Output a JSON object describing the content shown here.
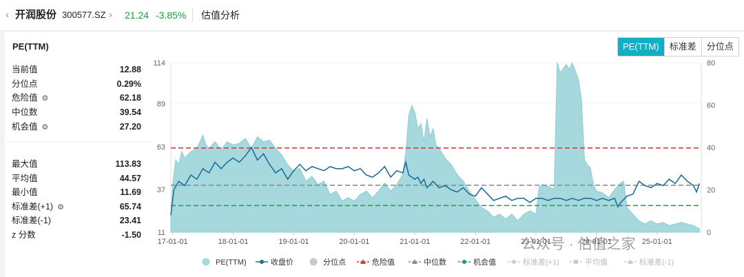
{
  "header": {
    "back_icon": "chevron-left-icon",
    "name": "开润股份",
    "code": "300577.SZ",
    "price": "21.24",
    "change": "-3.85%",
    "page_title": "估值分析",
    "price_color": "#1a9c3e"
  },
  "panel": {
    "title": "PE(TTM)",
    "tabs": [
      {
        "label": "PE(TTM)",
        "active": true
      },
      {
        "label": "标准差",
        "active": false
      },
      {
        "label": "分位点",
        "active": false
      }
    ]
  },
  "stats_top": [
    {
      "label": "当前值",
      "value": "12.88",
      "gear": false
    },
    {
      "label": "分位点",
      "value": "0.29%",
      "gear": false
    },
    {
      "label": "危险值",
      "value": "62.18",
      "gear": true
    },
    {
      "label": "中位数",
      "value": "39.54",
      "gear": false
    },
    {
      "label": "机会值",
      "value": "27.20",
      "gear": true
    }
  ],
  "stats_bottom": [
    {
      "label": "最大值",
      "value": "113.83",
      "gear": false
    },
    {
      "label": "平均值",
      "value": "44.57",
      "gear": false
    },
    {
      "label": "最小值",
      "value": "11.69",
      "gear": false
    },
    {
      "label": "标准差(+1)",
      "value": "65.74",
      "gear": true
    },
    {
      "label": "标准差(-1)",
      "value": "23.41",
      "gear": false
    },
    {
      "label": "z 分数",
      "value": "-1.50",
      "gear": false
    }
  ],
  "watermark": "公众号 · 估值之家",
  "chart_data": {
    "type": "area",
    "x_ticks": [
      "17-01-01",
      "18-01-01",
      "19-01-01",
      "20-01-01",
      "21-01-01",
      "22-01-01",
      "23-01-01",
      "24-01-01",
      "25-01-01"
    ],
    "x_tick_positions": [
      0,
      1,
      2,
      3,
      4,
      5,
      6,
      7,
      8
    ],
    "x_range": [
      -0.03,
      8.73
    ],
    "y_left_ticks": [
      11,
      37,
      63,
      89,
      114
    ],
    "y_left_range": [
      11,
      114
    ],
    "y_right_ticks": [
      0,
      20,
      40,
      60,
      80
    ],
    "y_right_range": [
      0,
      80
    ],
    "grid": true,
    "legend_position": "bottom",
    "colors": {
      "pe": "#a6d9dd",
      "price": "#1f6f9a",
      "danger": "#d83b3b",
      "median": "#8c8c8c",
      "opportunity": "#24a05a"
    },
    "series": [
      {
        "name": "PE(TTM)",
        "axis": "left",
        "points": [
          [
            -0.03,
            18
          ],
          [
            0.0,
            40
          ],
          [
            0.05,
            55
          ],
          [
            0.1,
            52
          ],
          [
            0.15,
            60
          ],
          [
            0.2,
            56
          ],
          [
            0.3,
            60
          ],
          [
            0.4,
            62
          ],
          [
            0.5,
            70
          ],
          [
            0.55,
            64
          ],
          [
            0.6,
            62
          ],
          [
            0.7,
            66
          ],
          [
            0.8,
            61
          ],
          [
            0.9,
            66
          ],
          [
            1.0,
            64
          ],
          [
            1.1,
            65
          ],
          [
            1.2,
            68
          ],
          [
            1.3,
            62
          ],
          [
            1.4,
            69
          ],
          [
            1.5,
            66
          ],
          [
            1.6,
            67
          ],
          [
            1.7,
            62
          ],
          [
            1.8,
            58
          ],
          [
            1.9,
            52
          ],
          [
            2.0,
            48
          ],
          [
            2.1,
            50
          ],
          [
            2.2,
            42
          ],
          [
            2.3,
            45
          ],
          [
            2.4,
            40
          ],
          [
            2.5,
            42
          ],
          [
            2.6,
            34
          ],
          [
            2.7,
            36
          ],
          [
            2.8,
            30
          ],
          [
            2.9,
            32
          ],
          [
            3.0,
            30
          ],
          [
            3.1,
            34
          ],
          [
            3.2,
            36
          ],
          [
            3.3,
            32
          ],
          [
            3.4,
            36
          ],
          [
            3.5,
            41
          ],
          [
            3.6,
            36
          ],
          [
            3.7,
            40
          ],
          [
            3.8,
            46
          ],
          [
            3.85,
            60
          ],
          [
            3.9,
            82
          ],
          [
            3.95,
            88
          ],
          [
            4.0,
            84
          ],
          [
            4.05,
            74
          ],
          [
            4.1,
            77
          ],
          [
            4.15,
            66
          ],
          [
            4.2,
            80
          ],
          [
            4.25,
            69
          ],
          [
            4.3,
            74
          ],
          [
            4.35,
            64
          ],
          [
            4.4,
            62
          ],
          [
            4.5,
            56
          ],
          [
            4.6,
            52
          ],
          [
            4.7,
            46
          ],
          [
            4.8,
            42
          ],
          [
            4.9,
            36
          ],
          [
            5.0,
            31
          ],
          [
            5.1,
            26
          ],
          [
            5.2,
            24
          ],
          [
            5.3,
            20
          ],
          [
            5.4,
            22
          ],
          [
            5.5,
            19
          ],
          [
            5.6,
            22
          ],
          [
            5.7,
            18
          ],
          [
            5.8,
            22
          ],
          [
            5.9,
            24
          ],
          [
            6.0,
            22
          ],
          [
            6.05,
            38
          ],
          [
            6.1,
            40
          ],
          [
            6.2,
            39
          ],
          [
            6.3,
            37
          ],
          [
            6.35,
            114
          ],
          [
            6.4,
            108
          ],
          [
            6.5,
            113
          ],
          [
            6.55,
            110
          ],
          [
            6.6,
            114
          ],
          [
            6.7,
            104
          ],
          [
            6.75,
            92
          ],
          [
            6.8,
            55
          ],
          [
            6.85,
            52
          ],
          [
            6.9,
            50
          ],
          [
            6.95,
            40
          ],
          [
            7.0,
            36
          ],
          [
            7.1,
            35
          ],
          [
            7.2,
            32
          ],
          [
            7.3,
            37
          ],
          [
            7.4,
            41
          ],
          [
            7.45,
            42
          ],
          [
            7.5,
            26
          ],
          [
            7.55,
            24
          ],
          [
            7.6,
            22
          ],
          [
            7.7,
            18
          ],
          [
            7.8,
            16
          ],
          [
            7.9,
            18
          ],
          [
            8.0,
            16
          ],
          [
            8.1,
            17
          ],
          [
            8.2,
            15
          ],
          [
            8.3,
            16
          ],
          [
            8.4,
            17
          ],
          [
            8.5,
            16
          ],
          [
            8.6,
            15
          ],
          [
            8.7,
            13
          ]
        ]
      },
      {
        "name": "收盘价",
        "axis": "right",
        "points": [
          [
            -0.03,
            8
          ],
          [
            0.02,
            20
          ],
          [
            0.1,
            24
          ],
          [
            0.2,
            22
          ],
          [
            0.3,
            27
          ],
          [
            0.4,
            25
          ],
          [
            0.5,
            30
          ],
          [
            0.6,
            28
          ],
          [
            0.7,
            33
          ],
          [
            0.8,
            30
          ],
          [
            0.9,
            33
          ],
          [
            1.0,
            35
          ],
          [
            1.1,
            33
          ],
          [
            1.2,
            36
          ],
          [
            1.3,
            40
          ],
          [
            1.4,
            34
          ],
          [
            1.5,
            37
          ],
          [
            1.6,
            32
          ],
          [
            1.7,
            28
          ],
          [
            1.8,
            30
          ],
          [
            1.9,
            25
          ],
          [
            2.0,
            29
          ],
          [
            2.1,
            32
          ],
          [
            2.2,
            29
          ],
          [
            2.3,
            31
          ],
          [
            2.4,
            30
          ],
          [
            2.5,
            29
          ],
          [
            2.6,
            31
          ],
          [
            2.7,
            30
          ],
          [
            2.8,
            30
          ],
          [
            2.9,
            31
          ],
          [
            3.0,
            29
          ],
          [
            3.1,
            30
          ],
          [
            3.2,
            27
          ],
          [
            3.3,
            26
          ],
          [
            3.4,
            28
          ],
          [
            3.5,
            31
          ],
          [
            3.6,
            26
          ],
          [
            3.7,
            29
          ],
          [
            3.8,
            28
          ],
          [
            3.85,
            33
          ],
          [
            3.9,
            27
          ],
          [
            4.0,
            25
          ],
          [
            4.05,
            26
          ],
          [
            4.1,
            23
          ],
          [
            4.15,
            25
          ],
          [
            4.2,
            21
          ],
          [
            4.3,
            24
          ],
          [
            4.4,
            21
          ],
          [
            4.5,
            22
          ],
          [
            4.6,
            20
          ],
          [
            4.7,
            19
          ],
          [
            4.8,
            21
          ],
          [
            4.9,
            18
          ],
          [
            5.0,
            17
          ],
          [
            5.1,
            21
          ],
          [
            5.2,
            18
          ],
          [
            5.3,
            15
          ],
          [
            5.4,
            16
          ],
          [
            5.5,
            17
          ],
          [
            5.6,
            15
          ],
          [
            5.7,
            16
          ],
          [
            5.8,
            16
          ],
          [
            5.9,
            14
          ],
          [
            6.0,
            16
          ],
          [
            6.1,
            16
          ],
          [
            6.2,
            15
          ],
          [
            6.3,
            16
          ],
          [
            6.4,
            16
          ],
          [
            6.5,
            15
          ],
          [
            6.6,
            16
          ],
          [
            6.7,
            15
          ],
          [
            6.8,
            16
          ],
          [
            6.9,
            16
          ],
          [
            7.0,
            15
          ],
          [
            7.1,
            16
          ],
          [
            7.2,
            15
          ],
          [
            7.3,
            16
          ],
          [
            7.35,
            12
          ],
          [
            7.4,
            14
          ],
          [
            7.5,
            17
          ],
          [
            7.6,
            18
          ],
          [
            7.7,
            24
          ],
          [
            7.8,
            22
          ],
          [
            7.9,
            21
          ],
          [
            8.0,
            23
          ],
          [
            8.1,
            22
          ],
          [
            8.2,
            25
          ],
          [
            8.3,
            23
          ],
          [
            8.4,
            27
          ],
          [
            8.5,
            24
          ],
          [
            8.6,
            22
          ],
          [
            8.65,
            19
          ],
          [
            8.7,
            23
          ]
        ]
      }
    ],
    "reference_lines": [
      {
        "name": "危险值",
        "value": 62.18,
        "axis": "left"
      },
      {
        "name": "中位数",
        "value": 39.54,
        "axis": "left"
      },
      {
        "name": "机会值",
        "value": 27.2,
        "axis": "left"
      }
    ],
    "legend": [
      {
        "name": "PE(TTM)",
        "marker": "circle",
        "color": "#a6d9dd",
        "enabled": true
      },
      {
        "name": "收盘价",
        "marker": "line-dot",
        "color": "#1f6f9a",
        "enabled": true
      },
      {
        "name": "分位点",
        "marker": "circle",
        "color": "#c8c8c8",
        "enabled": true
      },
      {
        "name": "危险值",
        "marker": "dash-triangle",
        "color": "#d83b3b",
        "enabled": true
      },
      {
        "name": "中位数",
        "marker": "dash-triangle",
        "color": "#8c8c8c",
        "enabled": true
      },
      {
        "name": "机会值",
        "marker": "dash-dot",
        "color": "#24a05a",
        "enabled": true
      },
      {
        "name": "标准差(+1)",
        "marker": "dash-dot",
        "color": "#cccccc",
        "enabled": false
      },
      {
        "name": "平均值",
        "marker": "dash-square",
        "color": "#cccccc",
        "enabled": false
      },
      {
        "name": "标准差(-1)",
        "marker": "dash-triangle",
        "color": "#cccccc",
        "enabled": false
      }
    ]
  }
}
